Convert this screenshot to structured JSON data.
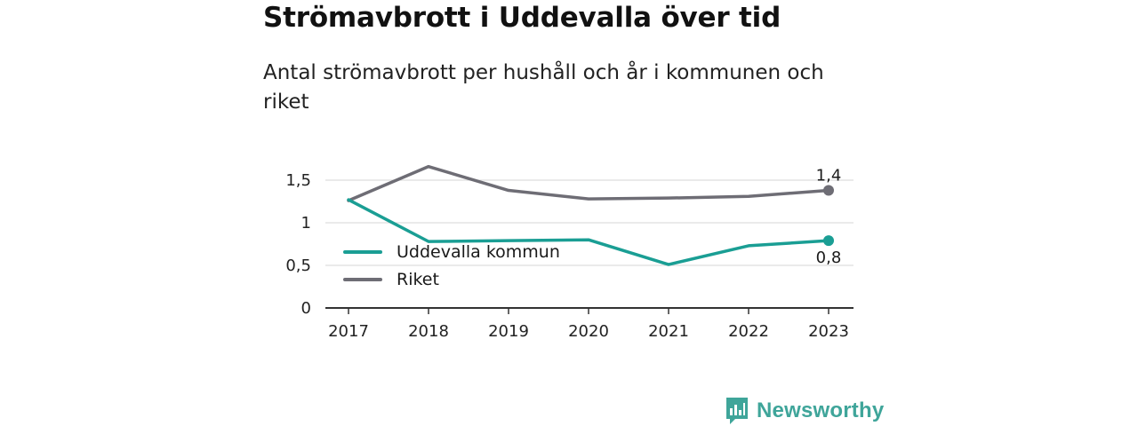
{
  "title": "Strömavbrott i Uddevalla över tid",
  "subtitle": "Antal strömavbrott per hushåll och år i kommunen och riket",
  "brand": {
    "name": "Newsworthy",
    "icon": "newsworthy-logo-icon",
    "color": "#3fa59a"
  },
  "colors": {
    "uddevalla": "#1a9e94",
    "riket": "#6e6d75",
    "grid": "#dddddd",
    "axis": "#333333"
  },
  "chart_data": {
    "type": "line",
    "x": [
      "2017",
      "2018",
      "2019",
      "2020",
      "2021",
      "2022",
      "2023"
    ],
    "series": [
      {
        "name": "Uddevalla kommun",
        "values": [
          1.27,
          0.78,
          0.79,
          0.8,
          0.51,
          0.73,
          0.79
        ]
      },
      {
        "name": "Riket",
        "values": [
          1.26,
          1.66,
          1.38,
          1.28,
          1.29,
          1.31,
          1.38
        ]
      }
    ],
    "end_labels": {
      "Uddevalla kommun": "0,8",
      "Riket": "1,4"
    },
    "ylim": [
      0,
      1.75
    ],
    "yticks": [
      0,
      0.5,
      1,
      1.5
    ],
    "ytick_labels": [
      "0",
      "0,5",
      "1",
      "1,5"
    ],
    "xlabel": "",
    "ylabel": "",
    "grid": true,
    "legend": "inside-left"
  }
}
